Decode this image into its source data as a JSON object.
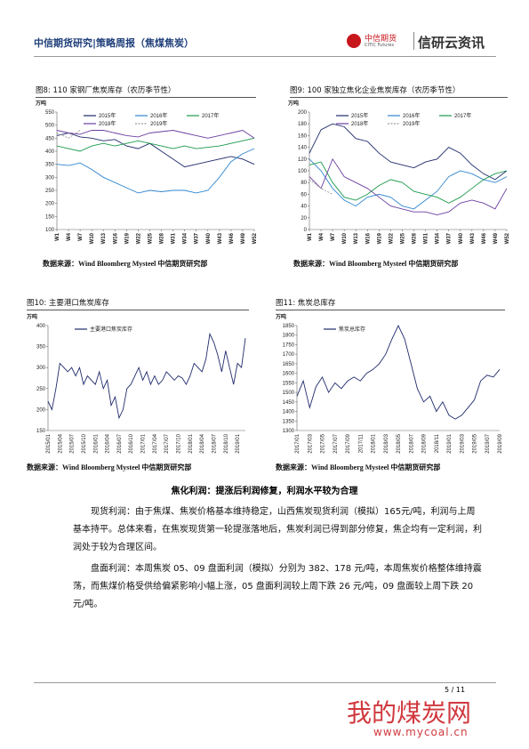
{
  "header": {
    "title": "中信期货研究|策略周报（焦煤焦炭）",
    "logo_cn": "中信期货",
    "logo_en": "CITIC Futures",
    "brand": "信研云资讯"
  },
  "chart_data": [
    {
      "type": "line",
      "title": "图8:  110 家钢厂焦炭库存（农历季节性）",
      "y_label": "万吨",
      "source": "数据来源：Wind Bloomberg Mysteel 中信期货研究部",
      "x": [
        1,
        4,
        7,
        10,
        13,
        16,
        19,
        22,
        25,
        28,
        31,
        34,
        37,
        40,
        43,
        46,
        49,
        52
      ],
      "xlim": [
        1,
        52
      ],
      "xticks": [
        {
          "value": 1,
          "label": "W1"
        },
        {
          "value": 4,
          "label": "W4"
        },
        {
          "value": 7,
          "label": "W7"
        },
        {
          "value": 10,
          "label": "W10"
        },
        {
          "value": 13,
          "label": "W13"
        },
        {
          "value": 16,
          "label": "W16"
        },
        {
          "value": 19,
          "label": "W19"
        },
        {
          "value": 22,
          "label": "W22"
        },
        {
          "value": 25,
          "label": "W25"
        },
        {
          "value": 28,
          "label": "W28"
        },
        {
          "value": 31,
          "label": "W31"
        },
        {
          "value": 34,
          "label": "W34"
        },
        {
          "value": 37,
          "label": "W37"
        },
        {
          "value": 40,
          "label": "W40"
        },
        {
          "value": 43,
          "label": "W43"
        },
        {
          "value": 46,
          "label": "W46"
        },
        {
          "value": 49,
          "label": "W49"
        },
        {
          "value": 52,
          "label": "W52"
        }
      ],
      "ylim": [
        100,
        550
      ],
      "yticks": [
        100,
        150,
        200,
        250,
        300,
        350,
        400,
        450,
        500,
        550
      ],
      "series": [
        {
          "name": "2015年",
          "color": "#1f2a6b",
          "values": [
            460,
            470,
            455,
            450,
            440,
            445,
            420,
            410,
            430,
            400,
            370,
            340,
            350,
            360,
            370,
            380,
            370,
            350
          ]
        },
        {
          "name": "2016年",
          "color": "#2f86d0",
          "values": [
            350,
            345,
            355,
            330,
            300,
            280,
            260,
            240,
            250,
            245,
            250,
            250,
            240,
            250,
            300,
            360,
            390,
            410
          ]
        },
        {
          "name": "2017年",
          "color": "#1a9a4a",
          "values": [
            420,
            410,
            400,
            420,
            430,
            420,
            430,
            440,
            430,
            420,
            410,
            420,
            410,
            415,
            420,
            430,
            440,
            450
          ]
        },
        {
          "name": "2018年",
          "color": "#6b3fa0",
          "values": [
            480,
            470,
            465,
            480,
            480,
            470,
            460,
            455,
            470,
            475,
            480,
            470,
            460,
            450,
            460,
            470,
            480,
            450
          ]
        },
        {
          "name": "2019年",
          "color": "#999999",
          "dashed": true,
          "values": [
            470,
            450,
            480,
            null,
            null,
            null,
            null,
            null,
            null,
            null,
            null,
            null,
            null,
            null,
            null,
            null,
            null,
            null
          ]
        }
      ]
    },
    {
      "type": "line",
      "title": "图9:   100 家独立焦化企业焦炭库存（农历季节性）",
      "y_label": "万吨",
      "source": "数据来源：Wind Bloomberg Mysteel 中信期货研究部",
      "x": [
        1,
        4,
        7,
        10,
        13,
        16,
        19,
        22,
        25,
        28,
        31,
        34,
        37,
        40,
        43,
        46,
        49,
        52
      ],
      "xlim": [
        1,
        52
      ],
      "xticks": [
        {
          "value": 1,
          "label": "W1"
        },
        {
          "value": 4,
          "label": "W4"
        },
        {
          "value": 7,
          "label": "W7"
        },
        {
          "value": 10,
          "label": "W10"
        },
        {
          "value": 13,
          "label": "W13"
        },
        {
          "value": 16,
          "label": "W16"
        },
        {
          "value": 19,
          "label": "W19"
        },
        {
          "value": 22,
          "label": "W22"
        },
        {
          "value": 25,
          "label": "W25"
        },
        {
          "value": 28,
          "label": "W28"
        },
        {
          "value": 31,
          "label": "W31"
        },
        {
          "value": 34,
          "label": "W34"
        },
        {
          "value": 37,
          "label": "W37"
        },
        {
          "value": 40,
          "label": "W40"
        },
        {
          "value": 43,
          "label": "W43"
        },
        {
          "value": 46,
          "label": "W46"
        },
        {
          "value": 49,
          "label": "W49"
        },
        {
          "value": 52,
          "label": "W52"
        }
      ],
      "ylim": [
        0,
        200
      ],
      "yticks": [
        0,
        20,
        40,
        60,
        80,
        100,
        120,
        140,
        160,
        180,
        200
      ],
      "series": [
        {
          "name": "2015年",
          "color": "#1f2a6b",
          "values": [
            130,
            170,
            180,
            175,
            155,
            150,
            130,
            115,
            110,
            105,
            115,
            120,
            140,
            130,
            110,
            95,
            85,
            100
          ]
        },
        {
          "name": "2016年",
          "color": "#2f86d0",
          "values": [
            120,
            100,
            70,
            50,
            40,
            55,
            60,
            55,
            40,
            35,
            50,
            65,
            90,
            100,
            95,
            85,
            80,
            90
          ]
        },
        {
          "name": "2017年",
          "color": "#1a9a4a",
          "values": [
            110,
            115,
            80,
            55,
            50,
            60,
            75,
            85,
            80,
            65,
            60,
            55,
            45,
            55,
            70,
            85,
            95,
            100
          ]
        },
        {
          "name": "2018年",
          "color": "#6b3fa0",
          "values": [
            90,
            70,
            120,
            90,
            80,
            70,
            55,
            40,
            35,
            30,
            30,
            25,
            30,
            45,
            50,
            45,
            35,
            70
          ]
        },
        {
          "name": "2019年",
          "color": "#999999",
          "dashed": true,
          "values": [
            85,
            70,
            60,
            null,
            null,
            null,
            null,
            null,
            null,
            null,
            null,
            null,
            null,
            null,
            null,
            null,
            null,
            null
          ]
        }
      ]
    },
    {
      "type": "line",
      "title": "图10:       主要港口焦炭库存",
      "y_label": "万吨",
      "source": "数据来源：Wind Bloomberg Mysteel 中信期货研究部",
      "categories": [
        "2015/01",
        null,
        null,
        "2015/04",
        null,
        null,
        "2015/07",
        null,
        null,
        "2015/10",
        null,
        null,
        "2016/01",
        null,
        null,
        "2016/04",
        null,
        null,
        "2016/07",
        null,
        null,
        "2016/10",
        null,
        null,
        "2017/01",
        null,
        null,
        "2017/04",
        null,
        null,
        "2017/07",
        null,
        null,
        "2017/10",
        null,
        null,
        "2018/01",
        null,
        null,
        "2018/04",
        null,
        null,
        "2018/07",
        null,
        null,
        "2018/10",
        null,
        null,
        "2019/01",
        null,
        null
      ],
      "ylim": [
        150,
        400
      ],
      "yticks": [
        150,
        200,
        250,
        300,
        350,
        400
      ],
      "series": [
        {
          "name": "主要港口焦炭库存",
          "color": "#1f2a6b",
          "values": [
            220,
            200,
            250,
            310,
            300,
            290,
            300,
            280,
            300,
            260,
            280,
            270,
            260,
            290,
            250,
            270,
            210,
            230,
            180,
            200,
            250,
            260,
            280,
            300,
            270,
            290,
            260,
            280,
            260,
            270,
            290,
            280,
            270,
            280,
            275,
            260,
            280,
            310,
            300,
            290,
            320,
            380,
            360,
            330,
            290,
            340,
            300,
            260,
            310,
            300,
            370
          ]
        }
      ]
    },
    {
      "type": "line",
      "title": "图11: 焦炭总库存",
      "y_label": "万吨",
      "source": "数据来源：Wind Bloomberg Mysteel 中信期货研究部",
      "categories": [
        "2017/01",
        null,
        "2017/03",
        null,
        "2017/05",
        null,
        "2017/07",
        null,
        "2017/09",
        null,
        "2017/11",
        null,
        "2018/01",
        null,
        "2018/03",
        null,
        "2018/05",
        null,
        "2018/07",
        null,
        "2018/09",
        null,
        "2018/11",
        null,
        "2019/01",
        null,
        "2019/03",
        null,
        "2019/05",
        null,
        "2019/07",
        null,
        "2019/09"
      ],
      "ylim": [
        1300,
        1850
      ],
      "yticks": [
        1300,
        1350,
        1400,
        1450,
        1500,
        1550,
        1600,
        1650,
        1700,
        1750,
        1800,
        1850
      ],
      "series": [
        {
          "name": "焦炭总库存",
          "color": "#1f2a6b",
          "values": [
            1480,
            1560,
            1420,
            1530,
            1580,
            1500,
            1550,
            1520,
            1560,
            1580,
            1560,
            1600,
            1620,
            1650,
            1700,
            1780,
            1850,
            1780,
            1650,
            1520,
            1450,
            1480,
            1400,
            1450,
            1380,
            1360,
            1380,
            1420,
            1460,
            1560,
            1590,
            1580,
            1620
          ]
        }
      ]
    }
  ],
  "body": {
    "heading": "焦化利润：提涨后利润修复，利润水平较为合理",
    "paragraphs": [
      "现货利润：由于焦煤、焦炭价格基本维持稳定，山西焦炭现货利润（模拟）165元/吨，利润与上周基本持平。总体来看，在焦炭现货第一轮提涨落地后，焦炭利润已得到部分修复，焦企均有一定利润，利润处于较为合理区间。",
      "盘面利润：本周焦炭 05、09 盘面利润（模拟）分别为 382、178 元/吨，本周焦炭价格整体维持震荡，而焦煤价格受供给偏紧影响小幅上涨，05 盘面利润较上周下跌 26 元/吨，09 盘面较上周下跌 20 元/吨。"
    ]
  },
  "footer": {
    "page": "5 / 11",
    "watermark": "我的煤炭网",
    "watermark_url": "www.mycoal.cn"
  }
}
